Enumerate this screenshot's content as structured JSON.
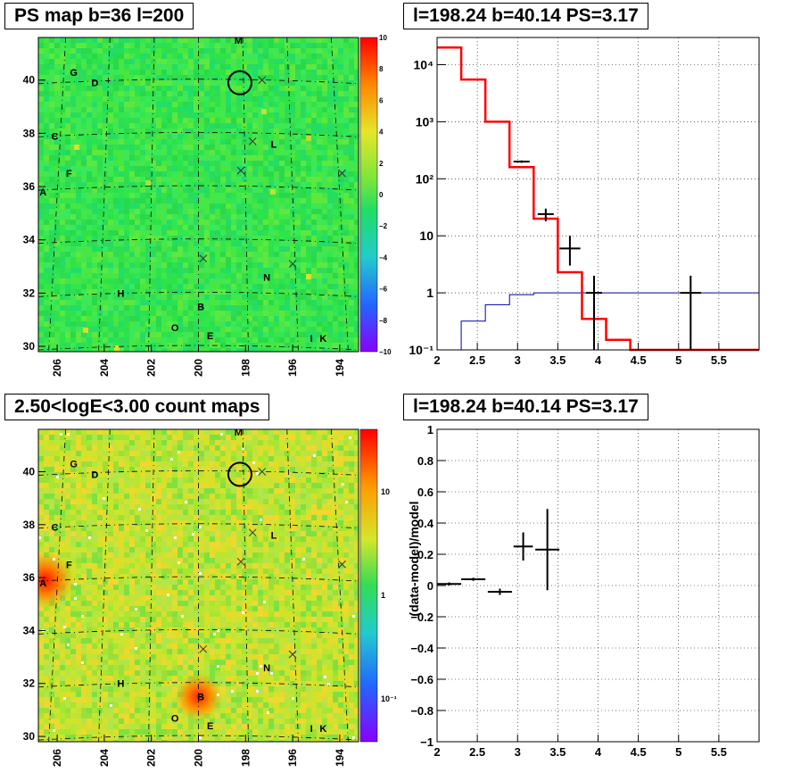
{
  "panels": {
    "ps_map": {
      "title": "PS map b=36 l=200",
      "colorbar_ticks": [
        "10",
        "8",
        "6",
        "4",
        "2",
        "0",
        "−2",
        "−4",
        "−6",
        "−8",
        "−10"
      ],
      "y_ticks": [
        "40",
        "38",
        "36",
        "34",
        "32",
        "30"
      ],
      "x_ticks": [
        "206",
        "204",
        "202",
        "200",
        "198",
        "196",
        "194"
      ],
      "labels": [
        "M",
        "G",
        "D",
        "C",
        "F",
        "A",
        "L",
        "H",
        "B",
        "N",
        "O",
        "E",
        "I",
        "K"
      ]
    },
    "count_map": {
      "title": "2.50<logE<3.00 count maps",
      "colorbar_ticks": [
        "10",
        "1",
        "10⁻¹"
      ],
      "y_ticks": [
        "40",
        "38",
        "36",
        "34",
        "32",
        "30"
      ],
      "x_ticks": [
        "206",
        "204",
        "202",
        "200",
        "198",
        "196",
        "194"
      ],
      "labels": [
        "M",
        "G",
        "D",
        "C",
        "F",
        "A",
        "L",
        "H",
        "B",
        "N",
        "O",
        "E",
        "I",
        "K"
      ]
    },
    "spectrum": {
      "title": "l=198.24 b=40.14 PS=3.17",
      "y_tick_labels": [
        "10⁴",
        "10³",
        "10²",
        "10",
        "1",
        "10⁻¹"
      ],
      "x_tick_labels": [
        "2",
        "2.5",
        "3",
        "3.5",
        "4",
        "4.5",
        "5",
        "5.5"
      ]
    },
    "residual": {
      "title": "l=198.24 b=40.14 PS=3.17",
      "ylabel": "(data-model)/model",
      "y_tick_labels": [
        "1",
        "0.8",
        "0.6",
        "0.4",
        "0.2",
        "0",
        "−0.2",
        "−0.4",
        "−0.6",
        "−0.8",
        "−1"
      ],
      "x_tick_labels": [
        "2",
        "2.5",
        "3",
        "3.5",
        "4",
        "4.5",
        "5",
        "5.5"
      ]
    }
  },
  "colors": {
    "model": "#ff0000",
    "background": "#0000aa",
    "data": "#000000",
    "map_green": "#33e64d",
    "map_yellow": "#b9e630"
  },
  "chart_data": [
    {
      "type": "heatmap",
      "title": "PS map b=36 l=200",
      "xlim": [
        206.8,
        193.2
      ],
      "ylim": [
        29.8,
        41.6
      ],
      "zlim": [
        -10,
        10
      ],
      "x_ticks": [
        206,
        204,
        202,
        200,
        198,
        196,
        194
      ],
      "y_ticks": [
        30,
        32,
        34,
        36,
        38,
        40
      ],
      "sources": [
        {
          "label": "M",
          "l": 198.3,
          "b": 41.5
        },
        {
          "label": "G",
          "l": 205.3,
          "b": 40.3
        },
        {
          "label": "D",
          "l": 204.4,
          "b": 39.9
        },
        {
          "label": "C",
          "l": 206.1,
          "b": 37.9
        },
        {
          "label": "F",
          "l": 205.5,
          "b": 36.5
        },
        {
          "label": "A",
          "l": 206.6,
          "b": 35.8
        },
        {
          "label": "L",
          "l": 196.8,
          "b": 37.6
        },
        {
          "label": "H",
          "l": 203.3,
          "b": 32.0
        },
        {
          "label": "B",
          "l": 199.9,
          "b": 31.5
        },
        {
          "label": "N",
          "l": 197.1,
          "b": 32.6
        },
        {
          "label": "O",
          "l": 201.0,
          "b": 30.7
        },
        {
          "label": "E",
          "l": 199.5,
          "b": 30.4
        },
        {
          "label": "I",
          "l": 195.2,
          "b": 30.3
        },
        {
          "label": "K",
          "l": 194.7,
          "b": 30.3
        }
      ],
      "crosses": [
        [
          197.7,
          37.7
        ],
        [
          198.2,
          36.6
        ],
        [
          199.8,
          33.3
        ],
        [
          196.0,
          33.1
        ],
        [
          193.9,
          36.5
        ],
        [
          197.3,
          40.0
        ]
      ],
      "circle": {
        "l": 198.24,
        "b": 39.9
      }
    },
    {
      "type": "heatmap",
      "title": "2.50<logE<3.00 count maps",
      "log_z": true,
      "xlim": [
        206.8,
        193.2
      ],
      "ylim": [
        29.8,
        41.6
      ],
      "x_ticks": [
        206,
        204,
        202,
        200,
        198,
        196,
        194
      ],
      "y_ticks": [
        30,
        32,
        34,
        36,
        38,
        40
      ],
      "hotspots": [
        {
          "label": "A",
          "l": 206.5,
          "b": 35.9
        },
        {
          "label": "B",
          "l": 200.0,
          "b": 31.5
        }
      ]
    },
    {
      "type": "line",
      "title": "l=198.24 b=40.14 PS=3.17",
      "log_y": true,
      "xlim": [
        2,
        6
      ],
      "ylim": [
        0.1,
        30000
      ],
      "series": [
        {
          "style": "histogram",
          "edges": [
            2.0,
            2.3,
            2.6,
            2.9,
            3.2,
            3.5,
            3.8,
            4.1,
            4.4,
            6.0
          ],
          "values": [
            20000,
            5500,
            1000,
            160,
            20,
            2.3,
            0.35,
            0.15,
            0.1
          ]
        },
        {
          "style": "histogram",
          "edges": [
            2.0,
            2.3,
            2.6,
            2.9,
            3.2,
            3.5,
            3.8,
            4.1,
            4.4,
            6.0
          ],
          "values": [
            0.1,
            0.32,
            0.62,
            0.93,
            1.0,
            1.0,
            1.0,
            1.0,
            1.0
          ]
        },
        {
          "style": "errorbars",
          "points": [
            {
              "x": 2.15,
              "y": 20000
            },
            {
              "x": 2.45,
              "y": 5500
            },
            {
              "x": 2.75,
              "y": 1000
            },
            {
              "x": 3.05,
              "y": 200,
              "xerr": 0.1,
              "ylo": 190,
              "yhi": 210
            },
            {
              "x": 3.35,
              "y": 24,
              "xerr": 0.1,
              "ylo": 18,
              "yhi": 30
            },
            {
              "x": 3.65,
              "y": 6,
              "xerr": 0.13,
              "ylo": 3,
              "yhi": 10
            },
            {
              "x": 3.95,
              "y": 1,
              "xerr": 0.1,
              "ylo": 0.1,
              "yhi": 2
            },
            {
              "x": 5.15,
              "y": 1,
              "xerr": 0.13,
              "ylo": 0.1,
              "yhi": 2
            }
          ]
        }
      ]
    },
    {
      "type": "scatter",
      "title": "l=198.24 b=40.14 PS=3.17",
      "ylabel": "(data-model)/model",
      "xlim": [
        2,
        6
      ],
      "ylim": [
        -1,
        1
      ],
      "points": [
        {
          "x": 2.15,
          "y": 0.01,
          "xerr": 0.15,
          "yerr": 0.01
        },
        {
          "x": 2.45,
          "y": 0.04,
          "xerr": 0.15,
          "yerr": 0.01
        },
        {
          "x": 2.78,
          "y": -0.04,
          "xerr": 0.15,
          "yerr": 0.02
        },
        {
          "x": 3.07,
          "y": 0.25,
          "xerr": 0.12,
          "yerr": 0.09
        },
        {
          "x": 3.37,
          "y": 0.23,
          "xerr": 0.15,
          "yerr": 0.26
        }
      ]
    }
  ]
}
